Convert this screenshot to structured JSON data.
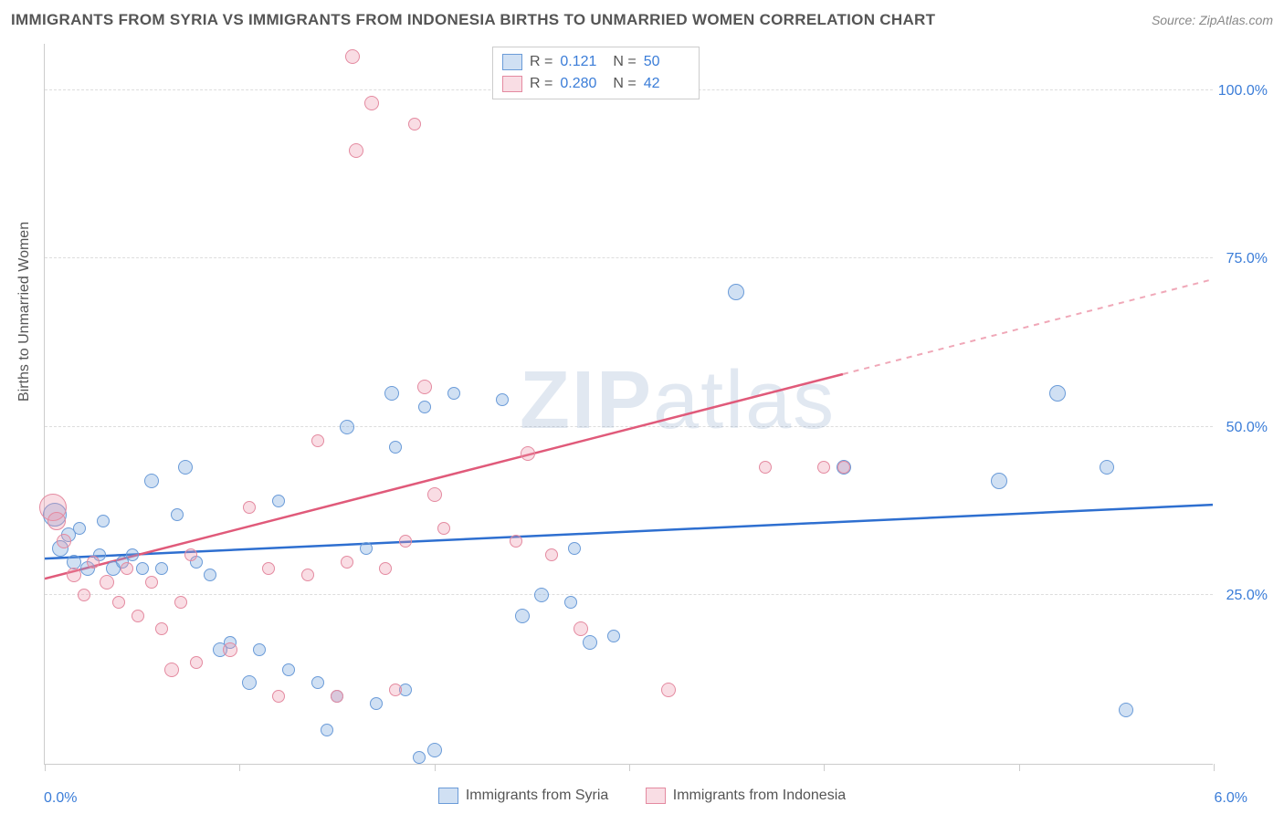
{
  "title": "IMMIGRANTS FROM SYRIA VS IMMIGRANTS FROM INDONESIA BIRTHS TO UNMARRIED WOMEN CORRELATION CHART",
  "source_label": "Source:",
  "source_name": "ZipAtlas.com",
  "watermark": "ZIPatlas",
  "chart": {
    "type": "scatter",
    "x_axis": {
      "min": 0,
      "max": 6.0,
      "ticks": [
        0.0,
        1.0,
        2.0,
        3.0,
        4.0,
        5.0,
        6.0
      ],
      "labels": {
        "start": "0.0%",
        "end": "6.0%"
      }
    },
    "y_axis": {
      "min": 0,
      "max": 107,
      "grid": [
        25,
        50,
        75,
        100
      ],
      "labels": [
        "25.0%",
        "50.0%",
        "75.0%",
        "100.0%"
      ],
      "title": "Births to Unmarried Women"
    },
    "background_color": "#ffffff",
    "grid_color": "#dddddd",
    "axis_color": "#cccccc",
    "tick_label_color": "#3b7dd8",
    "text_color": "#555555",
    "series": [
      {
        "name": "Immigrants from Syria",
        "fill": "rgba(120,165,220,0.35)",
        "stroke": "#6a9bd8",
        "trend_color": "#2e6fd0",
        "trend_dash_color": "#2e6fd0",
        "R": "0.121",
        "N": "50",
        "trend": {
          "y_at_x0": 30.5,
          "y_at_x6": 38.5,
          "solid_until_x": 6.0
        },
        "points": [
          {
            "x": 0.05,
            "y": 37,
            "r": 13
          },
          {
            "x": 0.08,
            "y": 32,
            "r": 9
          },
          {
            "x": 0.12,
            "y": 34,
            "r": 8
          },
          {
            "x": 0.15,
            "y": 30,
            "r": 8
          },
          {
            "x": 0.18,
            "y": 35,
            "r": 7
          },
          {
            "x": 0.22,
            "y": 29,
            "r": 8
          },
          {
            "x": 0.28,
            "y": 31,
            "r": 7
          },
          {
            "x": 0.3,
            "y": 36,
            "r": 7
          },
          {
            "x": 0.35,
            "y": 29,
            "r": 8
          },
          {
            "x": 0.4,
            "y": 30,
            "r": 7
          },
          {
            "x": 0.45,
            "y": 31,
            "r": 7
          },
          {
            "x": 0.5,
            "y": 29,
            "r": 7
          },
          {
            "x": 0.55,
            "y": 42,
            "r": 8
          },
          {
            "x": 0.6,
            "y": 29,
            "r": 7
          },
          {
            "x": 0.68,
            "y": 37,
            "r": 7
          },
          {
            "x": 0.72,
            "y": 44,
            "r": 8
          },
          {
            "x": 0.78,
            "y": 30,
            "r": 7
          },
          {
            "x": 0.85,
            "y": 28,
            "r": 7
          },
          {
            "x": 0.9,
            "y": 17,
            "r": 8
          },
          {
            "x": 0.95,
            "y": 18,
            "r": 7
          },
          {
            "x": 1.05,
            "y": 12,
            "r": 8
          },
          {
            "x": 1.1,
            "y": 17,
            "r": 7
          },
          {
            "x": 1.2,
            "y": 39,
            "r": 7
          },
          {
            "x": 1.25,
            "y": 14,
            "r": 7
          },
          {
            "x": 1.4,
            "y": 12,
            "r": 7
          },
          {
            "x": 1.45,
            "y": 5,
            "r": 7
          },
          {
            "x": 1.5,
            "y": 10,
            "r": 7
          },
          {
            "x": 1.55,
            "y": 50,
            "r": 8
          },
          {
            "x": 1.65,
            "y": 32,
            "r": 7
          },
          {
            "x": 1.7,
            "y": 9,
            "r": 7
          },
          {
            "x": 1.78,
            "y": 55,
            "r": 8
          },
          {
            "x": 1.8,
            "y": 47,
            "r": 7
          },
          {
            "x": 1.85,
            "y": 11,
            "r": 7
          },
          {
            "x": 1.92,
            "y": 1,
            "r": 7
          },
          {
            "x": 1.95,
            "y": 53,
            "r": 7
          },
          {
            "x": 2.0,
            "y": 2,
            "r": 8
          },
          {
            "x": 2.1,
            "y": 55,
            "r": 7
          },
          {
            "x": 2.35,
            "y": 54,
            "r": 7
          },
          {
            "x": 2.45,
            "y": 22,
            "r": 8
          },
          {
            "x": 2.55,
            "y": 25,
            "r": 8
          },
          {
            "x": 2.7,
            "y": 24,
            "r": 7
          },
          {
            "x": 2.72,
            "y": 32,
            "r": 7
          },
          {
            "x": 2.8,
            "y": 18,
            "r": 8
          },
          {
            "x": 2.92,
            "y": 19,
            "r": 7
          },
          {
            "x": 3.55,
            "y": 70,
            "r": 9
          },
          {
            "x": 4.1,
            "y": 44,
            "r": 8
          },
          {
            "x": 4.9,
            "y": 42,
            "r": 9
          },
          {
            "x": 5.2,
            "y": 55,
            "r": 9
          },
          {
            "x": 5.45,
            "y": 44,
            "r": 8
          },
          {
            "x": 5.55,
            "y": 8,
            "r": 8
          }
        ]
      },
      {
        "name": "Immigrants from Indonesia",
        "fill": "rgba(235,150,170,0.32)",
        "stroke": "#e48aa0",
        "trend_color": "#e05a7a",
        "trend_dash_color": "#f0a8b8",
        "R": "0.280",
        "N": "42",
        "trend": {
          "y_at_x0": 27.5,
          "y_at_x6": 72.0,
          "solid_until_x": 4.1
        },
        "points": [
          {
            "x": 0.04,
            "y": 38,
            "r": 15
          },
          {
            "x": 0.06,
            "y": 36,
            "r": 10
          },
          {
            "x": 0.1,
            "y": 33,
            "r": 8
          },
          {
            "x": 0.15,
            "y": 28,
            "r": 8
          },
          {
            "x": 0.2,
            "y": 25,
            "r": 7
          },
          {
            "x": 0.25,
            "y": 30,
            "r": 7
          },
          {
            "x": 0.32,
            "y": 27,
            "r": 8
          },
          {
            "x": 0.38,
            "y": 24,
            "r": 7
          },
          {
            "x": 0.42,
            "y": 29,
            "r": 7
          },
          {
            "x": 0.48,
            "y": 22,
            "r": 7
          },
          {
            "x": 0.55,
            "y": 27,
            "r": 7
          },
          {
            "x": 0.6,
            "y": 20,
            "r": 7
          },
          {
            "x": 0.65,
            "y": 14,
            "r": 8
          },
          {
            "x": 0.7,
            "y": 24,
            "r": 7
          },
          {
            "x": 0.75,
            "y": 31,
            "r": 7
          },
          {
            "x": 0.78,
            "y": 15,
            "r": 7
          },
          {
            "x": 0.95,
            "y": 17,
            "r": 8
          },
          {
            "x": 1.05,
            "y": 38,
            "r": 7
          },
          {
            "x": 1.15,
            "y": 29,
            "r": 7
          },
          {
            "x": 1.2,
            "y": 10,
            "r": 7
          },
          {
            "x": 1.35,
            "y": 28,
            "r": 7
          },
          {
            "x": 1.4,
            "y": 48,
            "r": 7
          },
          {
            "x": 1.5,
            "y": 10,
            "r": 7
          },
          {
            "x": 1.55,
            "y": 30,
            "r": 7
          },
          {
            "x": 1.58,
            "y": 105,
            "r": 8
          },
          {
            "x": 1.6,
            "y": 91,
            "r": 8
          },
          {
            "x": 1.68,
            "y": 98,
            "r": 8
          },
          {
            "x": 1.75,
            "y": 29,
            "r": 7
          },
          {
            "x": 1.8,
            "y": 11,
            "r": 7
          },
          {
            "x": 1.85,
            "y": 33,
            "r": 7
          },
          {
            "x": 1.9,
            "y": 95,
            "r": 7
          },
          {
            "x": 1.95,
            "y": 56,
            "r": 8
          },
          {
            "x": 2.0,
            "y": 40,
            "r": 8
          },
          {
            "x": 2.05,
            "y": 35,
            "r": 7
          },
          {
            "x": 2.42,
            "y": 33,
            "r": 7
          },
          {
            "x": 2.48,
            "y": 46,
            "r": 8
          },
          {
            "x": 2.6,
            "y": 31,
            "r": 7
          },
          {
            "x": 2.75,
            "y": 20,
            "r": 8
          },
          {
            "x": 3.2,
            "y": 11,
            "r": 8
          },
          {
            "x": 3.7,
            "y": 44,
            "r": 7
          },
          {
            "x": 4.0,
            "y": 44,
            "r": 7
          },
          {
            "x": 4.1,
            "y": 44,
            "r": 7
          }
        ]
      }
    ]
  },
  "legend_bottom": {
    "series1": "Immigrants from Syria",
    "series2": "Immigrants from Indonesia"
  },
  "legend_top_labels": {
    "R": "R =",
    "N": "N ="
  }
}
